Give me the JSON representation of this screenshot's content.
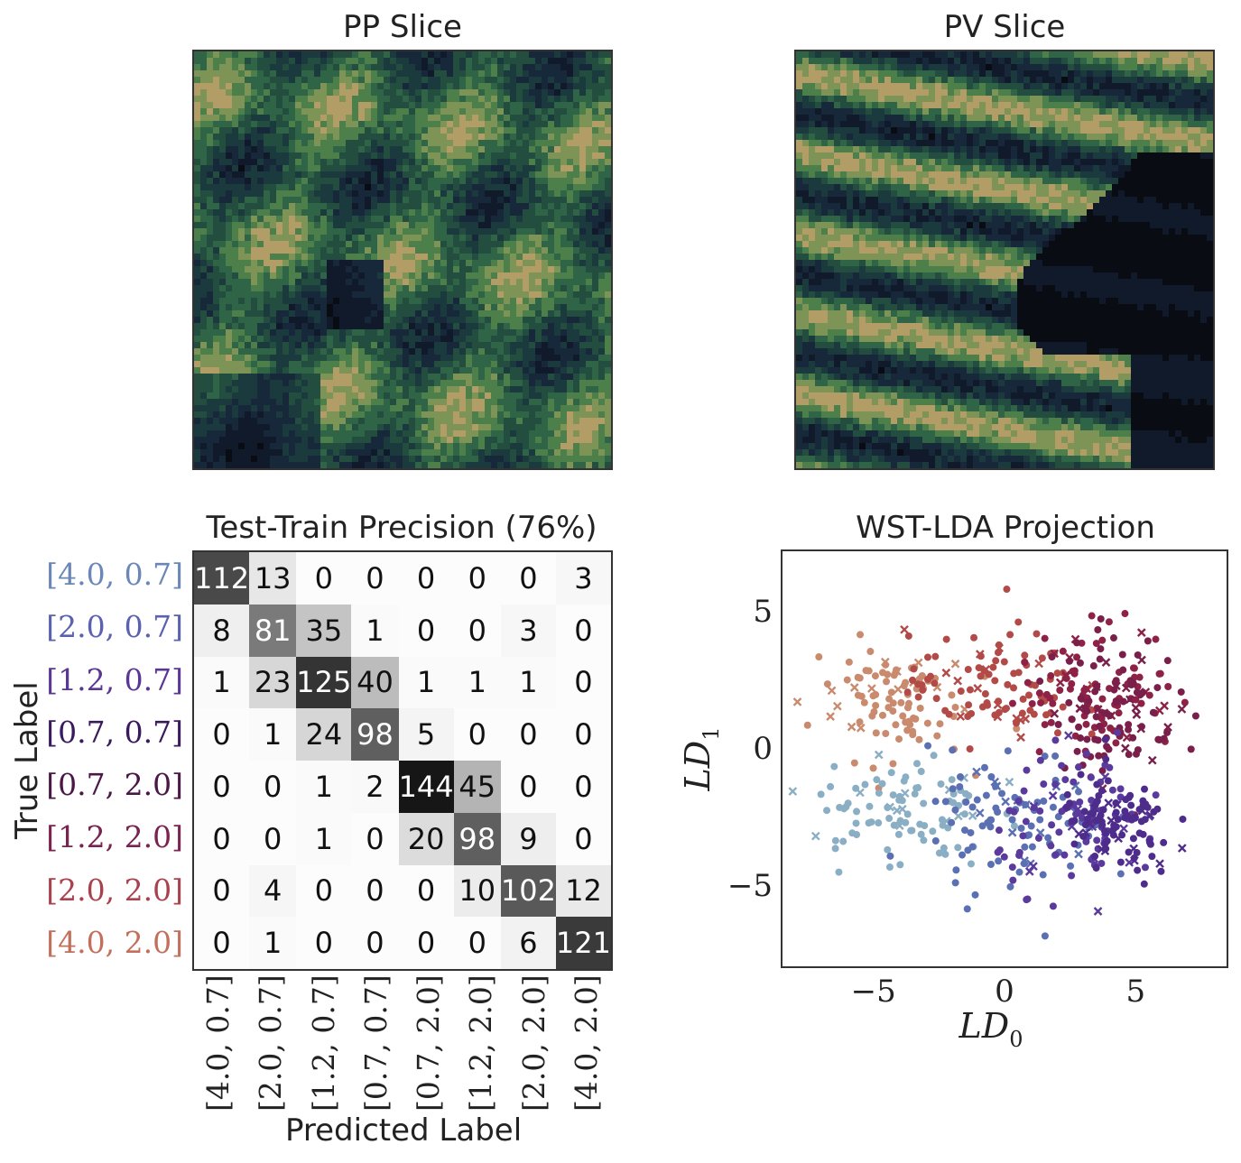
{
  "panels": {
    "pp_title": "PP Slice",
    "pv_title": "PV Slice"
  },
  "chart_data": [
    {
      "type": "heatmap",
      "title": "Test-Train Precision (76%)",
      "xlabel": "Predicted Label",
      "ylabel": "True Label",
      "labels": [
        "[4.0, 0.7]",
        "[2.0, 0.7]",
        "[1.2, 0.7]",
        "[0.7, 0.7]",
        "[0.7, 2.0]",
        "[1.2, 2.0]",
        "[2.0, 2.0]",
        "[4.0, 2.0]"
      ],
      "label_colors": [
        "#6a87b8",
        "#5a62b0",
        "#5a3796",
        "#3a1a5e",
        "#4a1746",
        "#7a2250",
        "#a8424e",
        "#c2705c"
      ],
      "matrix": [
        [
          112,
          13,
          0,
          0,
          0,
          0,
          0,
          3
        ],
        [
          8,
          81,
          35,
          1,
          0,
          0,
          3,
          0
        ],
        [
          1,
          23,
          125,
          40,
          1,
          1,
          1,
          0
        ],
        [
          0,
          1,
          24,
          98,
          5,
          0,
          0,
          0
        ],
        [
          0,
          0,
          1,
          2,
          144,
          45,
          0,
          0
        ],
        [
          0,
          0,
          1,
          0,
          20,
          98,
          9,
          0
        ],
        [
          0,
          4,
          0,
          0,
          0,
          10,
          102,
          12
        ],
        [
          0,
          1,
          0,
          0,
          0,
          0,
          6,
          121
        ]
      ]
    },
    {
      "type": "scatter",
      "title": "WST-LDA Projection",
      "xlabel": "LD",
      "xlabel_sub": "0",
      "ylabel": "LD",
      "ylabel_sub": "1",
      "xlim": [
        -8.5,
        8.5
      ],
      "ylim": [
        -8,
        7.2
      ],
      "xticks": [
        -5,
        0,
        5
      ],
      "xtick_labels": [
        "−5",
        "0",
        "5"
      ],
      "yticks": [
        5,
        0,
        -5
      ],
      "ytick_labels": [
        "5",
        "0",
        "−5"
      ],
      "series": [
        {
          "name": "[4.0, 2.0]",
          "color": "#c98a6e",
          "center": [
            -4.5,
            1.8
          ],
          "spread": [
            1.5,
            1.1
          ]
        },
        {
          "name": "[2.0, 2.0]",
          "color": "#b24a48",
          "center": [
            -0.5,
            2.2
          ],
          "spread": [
            1.6,
            1.0
          ]
        },
        {
          "name": "[1.2, 2.0]",
          "color": "#8e2246",
          "center": [
            3.6,
            2.2
          ],
          "spread": [
            1.5,
            1.2
          ]
        },
        {
          "name": "[0.7, 2.0]",
          "color": "#7a1f4a",
          "center": [
            4.2,
            1.5
          ],
          "spread": [
            1.2,
            1.3
          ]
        },
        {
          "name": "[4.0, 0.7]",
          "color": "#8aaec4",
          "center": [
            -4.0,
            -2.2
          ],
          "spread": [
            1.7,
            1.1
          ]
        },
        {
          "name": "[2.0, 0.7]",
          "color": "#5b6fb3",
          "center": [
            0.5,
            -2.8
          ],
          "spread": [
            1.7,
            1.3
          ]
        },
        {
          "name": "[1.2, 0.7]",
          "color": "#5b3a9e",
          "center": [
            3.0,
            -2.7
          ],
          "spread": [
            1.6,
            1.2
          ]
        },
        {
          "name": "[0.7, 0.7]",
          "color": "#4e2c8c",
          "center": [
            4.3,
            -3.0
          ],
          "spread": [
            1.1,
            1.0
          ]
        }
      ]
    }
  ]
}
